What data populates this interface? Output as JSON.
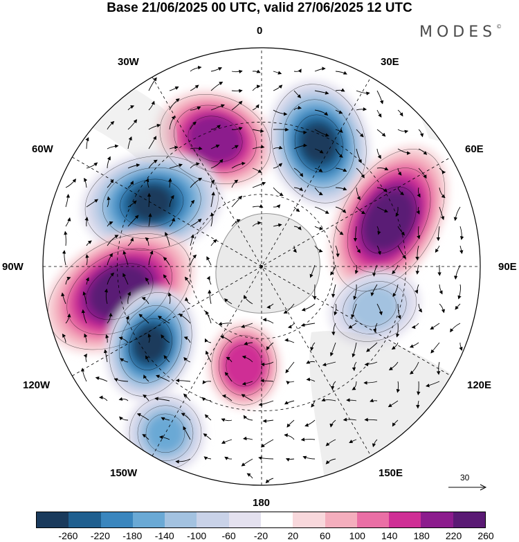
{
  "title": "Base 21/06/2025 00 UTC, valid 27/06/2025 12 UTC",
  "brand": "MODES",
  "brand_mark": "©",
  "longitude_labels": {
    "top": "0",
    "bottom": "180",
    "left": "90W",
    "right": "90E",
    "upper_left": "30W",
    "upper_right": "30E",
    "mid_upper_left": "60W",
    "mid_upper_right": "60E",
    "mid_lower_left": "120W",
    "mid_lower_right": "120E",
    "lower_left": "150W",
    "lower_right": "150E"
  },
  "vector_scale": {
    "value": "30"
  },
  "colorbar": {
    "ticks": [
      "-260",
      "-220",
      "-180",
      "-140",
      "-100",
      "-60",
      "-20",
      "20",
      "60",
      "100",
      "140",
      "180",
      "220",
      "260"
    ],
    "colors": [
      "#1a3a5c",
      "#1f5f8f",
      "#3a86be",
      "#6aa9d5",
      "#a3c2e0",
      "#c9d2e8",
      "#e4e1ef",
      "#ffffff",
      "#f8d8dc",
      "#f4aebd",
      "#ea6fa5",
      "#cf2f95",
      "#8c1c8d",
      "#5a1a74"
    ]
  },
  "anomaly_features": [
    {
      "kind": "positive",
      "level": 220,
      "sector": "20W"
    },
    {
      "kind": "negative",
      "level": -260,
      "sector": "25E"
    },
    {
      "kind": "negative",
      "level": -260,
      "sector": "60W"
    },
    {
      "kind": "positive",
      "level": 260,
      "sector": "70E"
    },
    {
      "kind": "positive",
      "level": 260,
      "sector": "100W"
    },
    {
      "kind": "negative",
      "level": -260,
      "sector": "125W"
    },
    {
      "kind": "positive",
      "level": 180,
      "sector": "170W"
    },
    {
      "kind": "negative",
      "level": -100,
      "sector": "110E"
    },
    {
      "kind": "negative",
      "level": -140,
      "sector": "150W"
    }
  ]
}
